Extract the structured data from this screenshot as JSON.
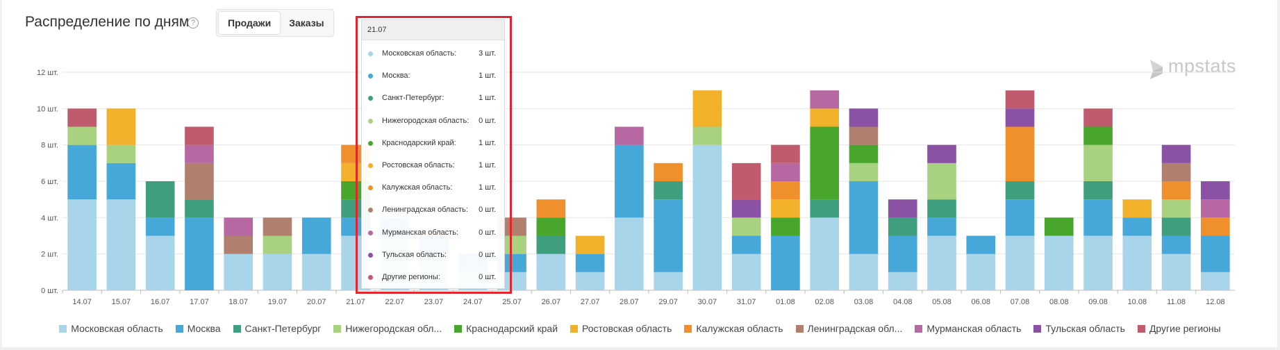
{
  "header": {
    "title": "Распределение по дням",
    "help_glyph": "?"
  },
  "toggle": {
    "options": [
      "Продажи",
      "Заказы"
    ],
    "active": 0
  },
  "logo": {
    "text": "mpstats"
  },
  "colors": {
    "Московская область": "#a9d5ea",
    "Москва": "#45a8d8",
    "Санкт-Петербург": "#3f9e7e",
    "Нижегородская область": "#a9d280",
    "Краснодарский край": "#47a62b",
    "Ростовская область": "#f2b12a",
    "Калужская область": "#ef902c",
    "Ленинградская область": "#b07f6d",
    "Мурманская область": "#b768a2",
    "Тульская область": "#8a51a5",
    "Другие регионы": "#bf5b6c"
  },
  "legend_labels": [
    "Московская область",
    "Москва",
    "Санкт-Петербург",
    "Нижегородская обл...",
    "Краснодарский край",
    "Ростовская область",
    "Калужская область",
    "Ленинградская обл...",
    "Мурманская область",
    "Тульская область",
    "Другие регионы"
  ],
  "tooltip": {
    "date": "21.07",
    "rows": [
      {
        "name": "Московская область:",
        "value": "3 шт."
      },
      {
        "name": "Москва:",
        "value": "1 шт."
      },
      {
        "name": "Санкт-Петербург:",
        "value": "1 шт."
      },
      {
        "name": "Нижегородская область:",
        "value": "0 шт."
      },
      {
        "name": "Краснодарский край:",
        "value": "1 шт."
      },
      {
        "name": "Ростовская область:",
        "value": "1 шт."
      },
      {
        "name": "Калужская область:",
        "value": "1 шт."
      },
      {
        "name": "Ленинградская область:",
        "value": "0 шт."
      },
      {
        "name": "Мурманская область:",
        "value": "0 шт."
      },
      {
        "name": "Тульская область:",
        "value": "0 шт."
      },
      {
        "name": "Другие регионы:",
        "value": "0 шт."
      }
    ]
  },
  "chart_data": {
    "type": "bar",
    "stacked": true,
    "y_tick_labels": [
      "0 шт.",
      "2 шт.",
      "4 шт.",
      "6 шт.",
      "8 шт.",
      "10 шт.",
      "12 шт."
    ],
    "ylim": [
      0,
      12
    ],
    "categories": [
      "14.07",
      "15.07",
      "16.07",
      "17.07",
      "18.07",
      "19.07",
      "20.07",
      "21.07",
      "22.07",
      "23.07",
      "24.07",
      "25.07",
      "26.07",
      "27.07",
      "28.07",
      "29.07",
      "30.07",
      "31.07",
      "01.08",
      "02.08",
      "03.08",
      "04.08",
      "05.08",
      "06.08",
      "07.08",
      "08.08",
      "09.08",
      "10.08",
      "11.08",
      "12.08"
    ],
    "series": [
      {
        "name": "Московская область",
        "values": [
          5,
          5,
          3,
          0,
          2,
          2,
          2,
          3,
          3,
          2,
          1,
          1,
          2,
          1,
          4,
          1,
          8,
          2,
          0,
          4,
          2,
          1,
          3,
          2,
          3,
          3,
          3,
          3,
          2,
          1
        ]
      },
      {
        "name": "Москва",
        "values": [
          3,
          2,
          1,
          4,
          0,
          0,
          2,
          1,
          1,
          1,
          1,
          1,
          0,
          1,
          4,
          4,
          0,
          1,
          3,
          0,
          4,
          2,
          1,
          1,
          2,
          0,
          2,
          1,
          1,
          2
        ]
      },
      {
        "name": "Санкт-Петербург",
        "values": [
          0,
          0,
          2,
          1,
          0,
          0,
          0,
          1,
          0,
          0,
          0,
          0,
          1,
          0,
          0,
          1,
          0,
          0,
          0,
          1,
          0,
          1,
          1,
          0,
          1,
          0,
          1,
          0,
          1,
          0
        ]
      },
      {
        "name": "Нижегородская область",
        "values": [
          1,
          1,
          0,
          0,
          0,
          1,
          0,
          0,
          0,
          0,
          0,
          1,
          0,
          0,
          0,
          0,
          1,
          1,
          0,
          0,
          1,
          0,
          2,
          0,
          0,
          0,
          2,
          0,
          1,
          0
        ]
      },
      {
        "name": "Краснодарский край",
        "values": [
          0,
          0,
          0,
          0,
          0,
          0,
          0,
          1,
          0,
          0,
          0,
          0,
          1,
          0,
          0,
          0,
          0,
          0,
          1,
          4,
          1,
          0,
          0,
          0,
          0,
          1,
          1,
          0,
          0,
          0
        ]
      },
      {
        "name": "Ростовская область",
        "values": [
          0,
          2,
          0,
          0,
          0,
          0,
          0,
          1,
          0,
          0,
          0,
          0,
          0,
          1,
          0,
          0,
          2,
          0,
          1,
          1,
          0,
          0,
          0,
          0,
          0,
          0,
          0,
          1,
          0,
          0
        ]
      },
      {
        "name": "Калужская область",
        "values": [
          0,
          0,
          0,
          0,
          0,
          0,
          0,
          1,
          0,
          0,
          0,
          0,
          1,
          0,
          0,
          1,
          0,
          0,
          1,
          0,
          0,
          0,
          0,
          0,
          3,
          0,
          0,
          0,
          1,
          1
        ]
      },
      {
        "name": "Ленинградская область",
        "values": [
          0,
          0,
          0,
          2,
          1,
          1,
          0,
          0,
          0,
          0,
          0,
          1,
          0,
          0,
          0,
          0,
          0,
          0,
          0,
          0,
          1,
          0,
          0,
          0,
          0,
          0,
          0,
          0,
          1,
          0
        ]
      },
      {
        "name": "Мурманская область",
        "values": [
          0,
          0,
          0,
          1,
          1,
          0,
          0,
          0,
          0,
          0,
          0,
          0,
          0,
          0,
          1,
          0,
          0,
          0,
          1,
          1,
          0,
          0,
          0,
          0,
          0,
          0,
          0,
          0,
          0,
          1
        ]
      },
      {
        "name": "Тульская область",
        "values": [
          0,
          0,
          0,
          0,
          0,
          0,
          0,
          0,
          0,
          0,
          0,
          0,
          0,
          0,
          0,
          0,
          0,
          1,
          0,
          0,
          1,
          1,
          1,
          0,
          1,
          0,
          0,
          0,
          1,
          1
        ]
      },
      {
        "name": "Другие регионы",
        "values": [
          1,
          0,
          0,
          1,
          0,
          0,
          0,
          0,
          0,
          0,
          0,
          0,
          0,
          0,
          0,
          0,
          0,
          2,
          1,
          0,
          0,
          0,
          0,
          0,
          1,
          0,
          1,
          0,
          0,
          0
        ]
      }
    ]
  }
}
